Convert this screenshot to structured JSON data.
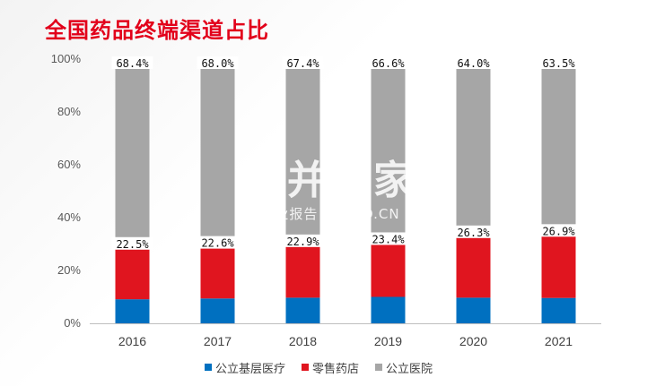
{
  "title": "全国药品终端渠道占比",
  "watermark": {
    "main": "卅并购家",
    "sub": "行业报告 IPOIPO.CN"
  },
  "colors": {
    "title": "#e2001a",
    "基层": "#0070c0",
    "零售": "#e0151f",
    "医院": "#a6a6a6"
  },
  "chart_data": {
    "type": "bar",
    "stacked": true,
    "categories": [
      "2016",
      "2017",
      "2018",
      "2019",
      "2020",
      "2021"
    ],
    "series": [
      {
        "name": "公立基层医疗",
        "values": [
          9.1,
          9.4,
          9.7,
          10.0,
          9.7,
          9.6
        ],
        "color": "#0070c0"
      },
      {
        "name": "零售药店",
        "values": [
          22.5,
          22.6,
          22.9,
          23.4,
          26.3,
          26.9
        ],
        "color": "#e0151f"
      },
      {
        "name": "公立医院",
        "values": [
          68.4,
          68.0,
          67.4,
          66.6,
          64.0,
          63.5
        ],
        "color": "#a6a6a6"
      }
    ],
    "data_labels": {
      "零售药店": [
        "22.5%",
        "22.6%",
        "22.9%",
        "23.4%",
        "26.3%",
        "26.9%"
      ],
      "公立医院": [
        "68.4%",
        "68.0%",
        "67.4%",
        "66.6%",
        "64.0%",
        "63.5%"
      ]
    },
    "ylim": [
      0,
      100
    ],
    "yticks": [
      "0%",
      "20%",
      "40%",
      "60%",
      "80%",
      "100%"
    ],
    "xlabel": "",
    "ylabel": "",
    "legend": "bottom"
  }
}
